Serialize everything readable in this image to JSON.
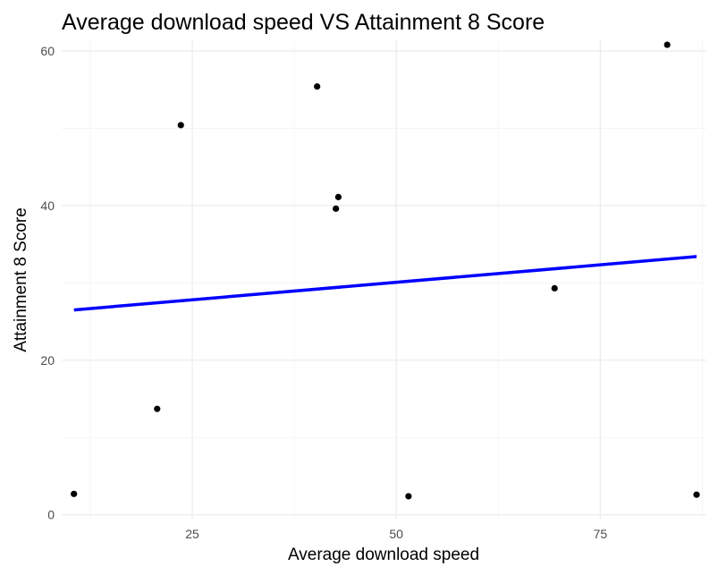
{
  "chart_data": {
    "type": "scatter",
    "title": "Average download speed VS Attainment 8 Score",
    "xlabel": "Average download speed",
    "ylabel": "Attainment 8 Score",
    "xlim": [
      9,
      88
    ],
    "ylim": [
      -0.5,
      61.5
    ],
    "x_ticks": [
      25,
      50,
      75
    ],
    "y_ticks": [
      0,
      20,
      40,
      60
    ],
    "x_minor_ticks": [
      12.5,
      37.5,
      62.5,
      87.5
    ],
    "y_minor_ticks": [
      10,
      30,
      50
    ],
    "grid": true,
    "legend": "none",
    "points": [
      {
        "x": 10.5,
        "y": 2.7
      },
      {
        "x": 20.7,
        "y": 13.7
      },
      {
        "x": 23.6,
        "y": 50.4
      },
      {
        "x": 40.3,
        "y": 55.4
      },
      {
        "x": 42.6,
        "y": 39.6
      },
      {
        "x": 42.9,
        "y": 41.1
      },
      {
        "x": 51.5,
        "y": 2.4
      },
      {
        "x": 69.4,
        "y": 29.3
      },
      {
        "x": 83.2,
        "y": 60.8
      },
      {
        "x": 86.8,
        "y": 2.6
      }
    ],
    "trend_line": {
      "type": "linear",
      "x": [
        10.5,
        86.8
      ],
      "y": [
        26.5,
        33.4
      ]
    },
    "colors": {
      "points": "#000000",
      "trend_line": "#0000ff",
      "background": "#ffffff"
    }
  }
}
